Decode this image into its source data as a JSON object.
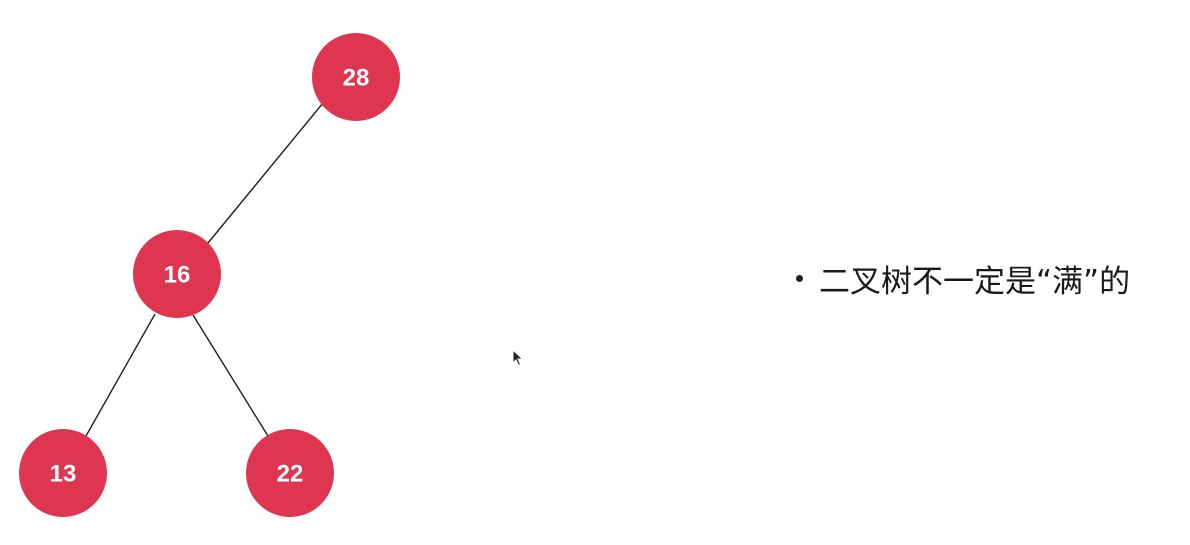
{
  "tree": {
    "nodes": [
      {
        "id": "n28",
        "label": "28"
      },
      {
        "id": "n16",
        "label": "16"
      },
      {
        "id": "n13",
        "label": "13"
      },
      {
        "id": "n22",
        "label": "22"
      }
    ],
    "edges": [
      {
        "from": "n28",
        "to": "n16"
      },
      {
        "from": "n16",
        "to": "n13"
      },
      {
        "from": "n16",
        "to": "n22"
      }
    ],
    "node_color": "#de3550",
    "label_color": "#ffffff",
    "edge_color": "#1f1f1f"
  },
  "bullets": [
    {
      "text": "二叉树不一定是“满”的"
    }
  ],
  "cursor": {
    "icon": "mouse-pointer-icon"
  }
}
